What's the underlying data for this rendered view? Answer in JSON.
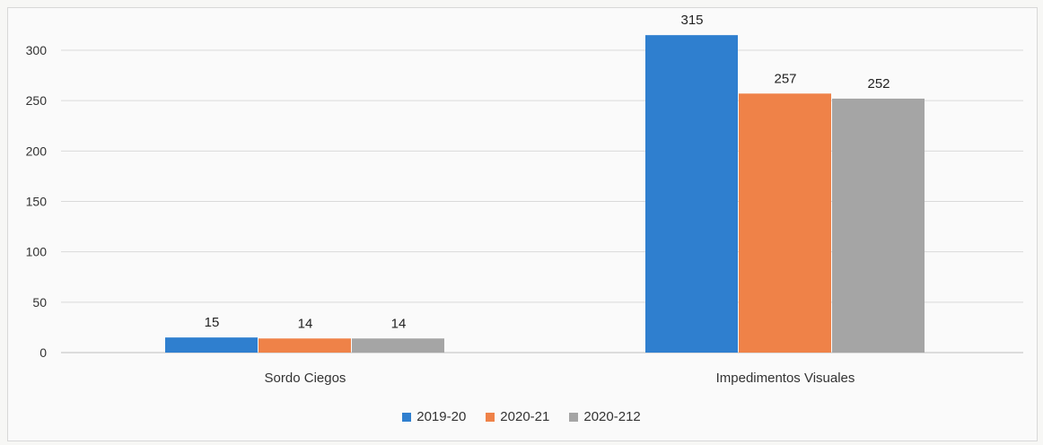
{
  "chart_data": {
    "type": "bar",
    "title": "",
    "categories": [
      "Sordo Ciegos",
      "Impedimentos Visuales"
    ],
    "series": [
      {
        "name": "2019-20",
        "values": [
          15,
          315
        ],
        "color": "#2f7fcf"
      },
      {
        "name": "2020-21",
        "values": [
          14,
          257
        ],
        "color": "#ef8248"
      },
      {
        "name": "2020-212",
        "values": [
          14,
          252
        ],
        "color": "#a5a5a5"
      }
    ],
    "ylim": [
      0,
      300
    ],
    "yticks": [
      "0",
      "50",
      "100",
      "150",
      "200",
      "250",
      "300"
    ],
    "grid": true,
    "legend_position": "bottom",
    "data_labels": true
  }
}
